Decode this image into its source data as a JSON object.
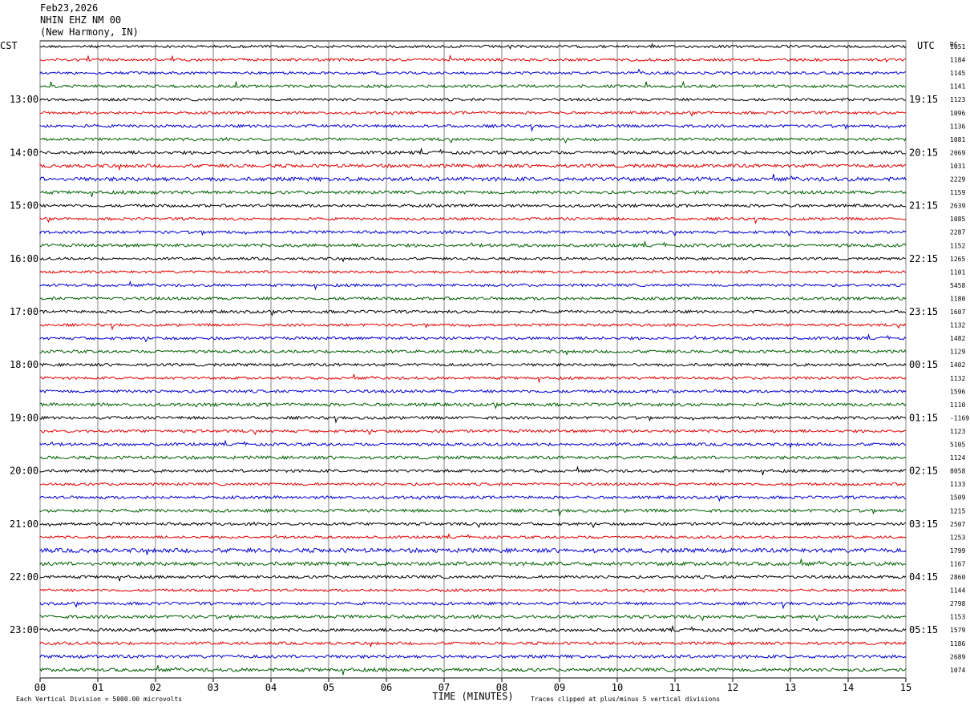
{
  "header": {
    "date": "Feb23,2026",
    "station": "NHIN EHZ NM 00",
    "location": "(New Harmony, IN)"
  },
  "left_timezone": "CST",
  "right_timezone": "UTC",
  "dc_label": "DC",
  "footer": {
    "xlabel": "TIME (MINUTES)",
    "scale_note": "Each Vertical Division = 5000.00 microvolts",
    "clip_note": "Traces clipped at plus/minus 5 vertical divisions"
  },
  "colors": {
    "trace_cycle": [
      "#000000",
      "#e00000",
      "#0000d0",
      "#006000"
    ],
    "grid": "#808080"
  },
  "chart_data": {
    "type": "line",
    "title": "NHIN EHZ NM 00",
    "xlabel": "TIME (MINUTES)",
    "xlim": [
      0,
      15
    ],
    "x_ticks": [
      "00",
      "01",
      "02",
      "03",
      "04",
      "05",
      "06",
      "07",
      "08",
      "09",
      "10",
      "11",
      "12",
      "13",
      "14",
      "15"
    ],
    "rows_per_hour": 4,
    "row_count": 48,
    "left_hour_labels": [
      "",
      "13:00",
      "14:00",
      "15:00",
      "16:00",
      "17:00",
      "18:00",
      "19:00",
      "20:00",
      "21:00",
      "22:00",
      "23:00"
    ],
    "right_hour_labels": [
      "",
      "19:15",
      "20:15",
      "21:15",
      "22:15",
      "23:15",
      "00:15",
      "01:15",
      "02:15",
      "03:15",
      "04:15",
      "05:15"
    ],
    "dc_offsets": [
      "1051",
      "1184",
      "1145",
      "1141",
      "1123",
      "1096",
      "1136",
      "1081",
      "2069",
      "1031",
      "2229",
      "1159",
      "2639",
      "1085",
      "2287",
      "1152",
      "1265",
      "1101",
      "5458",
      "1180",
      "1607",
      "1132",
      "1482",
      "1129",
      "1402",
      "1132",
      "1596",
      "1110",
      "-1169",
      "1123",
      "5105",
      "1124",
      "8058",
      "1133",
      "1509",
      "1215",
      "2507",
      "1253",
      "1799",
      "1167",
      "2860",
      "1144",
      "2798",
      "1153",
      "1579",
      "1186",
      "2689",
      "1074"
    ],
    "amplitudes": [
      1.0,
      1.0,
      1.0,
      1.1,
      1.0,
      1.0,
      1.1,
      1.1,
      1.2,
      1.3,
      1.5,
      1.2,
      1.1,
      1.0,
      1.1,
      1.2,
      1.0,
      1.0,
      1.0,
      1.1,
      1.1,
      1.0,
      1.1,
      1.1,
      1.1,
      1.0,
      1.1,
      1.2,
      1.1,
      1.1,
      1.1,
      1.2,
      1.1,
      1.0,
      1.1,
      1.2,
      1.1,
      1.0,
      1.6,
      1.4,
      1.1,
      1.0,
      1.1,
      1.2,
      1.2,
      1.1,
      1.2,
      1.3
    ]
  }
}
